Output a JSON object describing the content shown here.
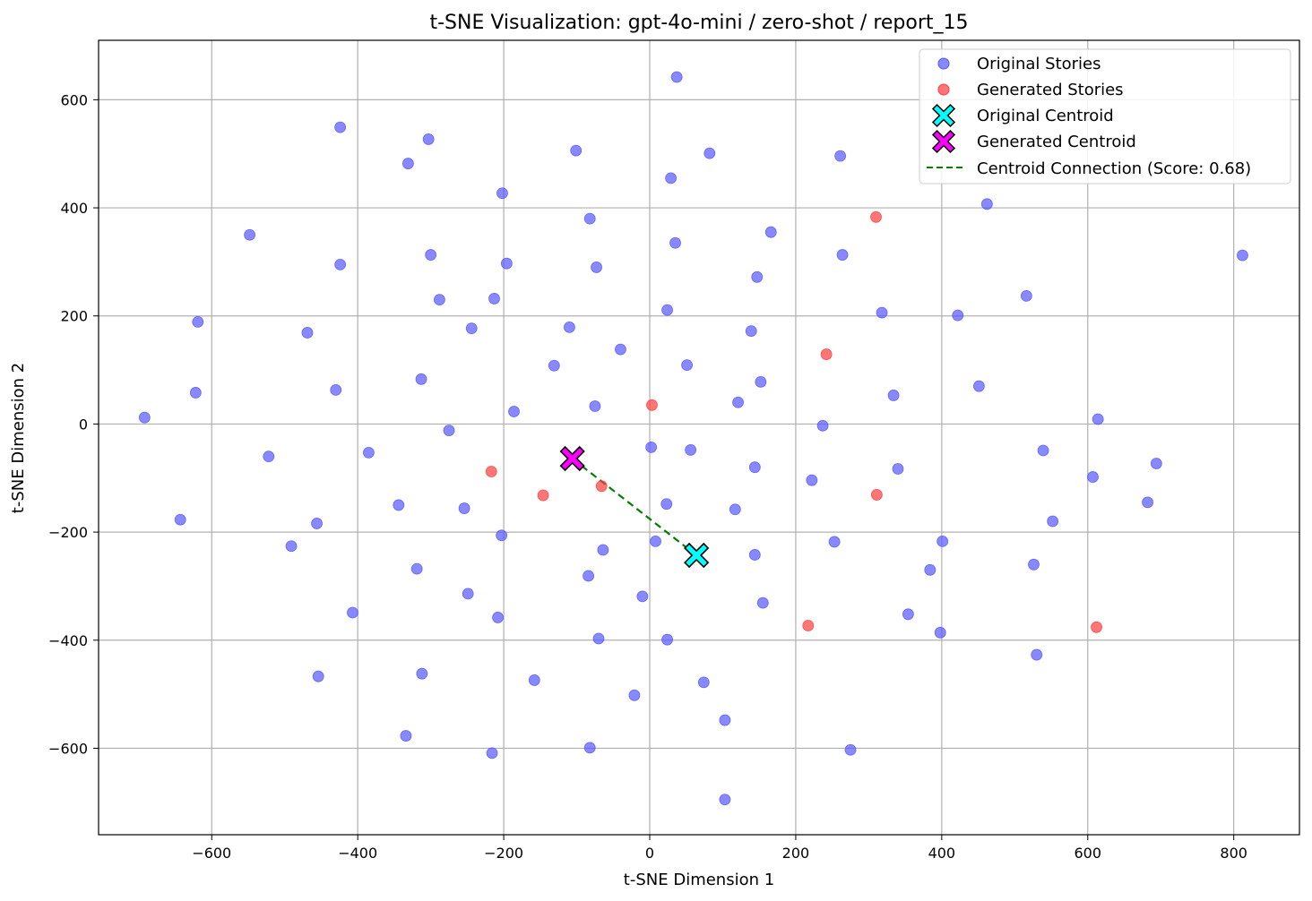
{
  "chart_data": {
    "type": "scatter",
    "title": "t-SNE Visualization: gpt-4o-mini / zero-shot / report_15",
    "xlabel": "t-SNE Dimension 1",
    "ylabel": "t-SNE Dimension 2",
    "xlim": [
      -755,
      890
    ],
    "ylim": [
      -760,
      710
    ],
    "xticks": [
      -600,
      -400,
      -200,
      0,
      200,
      400,
      600,
      800
    ],
    "yticks": [
      -600,
      -400,
      -200,
      0,
      200,
      400,
      600
    ],
    "grid": true,
    "legend_position": "top-right",
    "colors": {
      "original": "#5555ff",
      "generated": "#ff3c3c",
      "original_centroid": "#00ffff",
      "generated_centroid": "#ff00ff",
      "connection": "#008000",
      "grid": "#b0b0b0"
    },
    "series": [
      {
        "name": "Original Stories",
        "points": [
          [
            37,
            642
          ],
          [
            -424,
            549
          ],
          [
            -303,
            527
          ],
          [
            -101,
            506
          ],
          [
            82,
            501
          ],
          [
            -331,
            482
          ],
          [
            29,
            455
          ],
          [
            261,
            496
          ],
          [
            -202,
            427
          ],
          [
            462,
            407
          ],
          [
            -82,
            380
          ],
          [
            -548,
            350
          ],
          [
            35,
            335
          ],
          [
            166,
            355
          ],
          [
            -424,
            295
          ],
          [
            -300,
            313
          ],
          [
            -196,
            297
          ],
          [
            -73,
            290
          ],
          [
            264,
            313
          ],
          [
            147,
            272
          ],
          [
            812,
            312
          ],
          [
            516,
            237
          ],
          [
            -213,
            232
          ],
          [
            -288,
            230
          ],
          [
            24,
            211
          ],
          [
            318,
            206
          ],
          [
            422,
            201
          ],
          [
            -619,
            189
          ],
          [
            -469,
            169
          ],
          [
            -244,
            177
          ],
          [
            -110,
            179
          ],
          [
            139,
            172
          ],
          [
            -40,
            138
          ],
          [
            51,
            109
          ],
          [
            -131,
            108
          ],
          [
            -430,
            63
          ],
          [
            -313,
            83
          ],
          [
            451,
            70
          ],
          [
            -622,
            58
          ],
          [
            152,
            78
          ],
          [
            334,
            53
          ],
          [
            121,
            40
          ],
          [
            -75,
            33
          ],
          [
            -186,
            23
          ],
          [
            -692,
            12
          ],
          [
            614,
            9
          ],
          [
            237,
            -3
          ],
          [
            -275,
            -12
          ],
          [
            2,
            -43
          ],
          [
            56,
            -48
          ],
          [
            539,
            -49
          ],
          [
            -385,
            -53
          ],
          [
            -522,
            -60
          ],
          [
            144,
            -80
          ],
          [
            340,
            -83
          ],
          [
            694,
            -73
          ],
          [
            222,
            -104
          ],
          [
            607,
            -98
          ],
          [
            -344,
            -150
          ],
          [
            23,
            -148
          ],
          [
            -254,
            -156
          ],
          [
            117,
            -158
          ],
          [
            -643,
            -177
          ],
          [
            682,
            -145
          ],
          [
            -456,
            -184
          ],
          [
            552,
            -180
          ],
          [
            -203,
            -206
          ],
          [
            -491,
            -226
          ],
          [
            8,
            -217
          ],
          [
            253,
            -218
          ],
          [
            401,
            -217
          ],
          [
            -64,
            -233
          ],
          [
            144,
            -242
          ],
          [
            -319,
            -268
          ],
          [
            -84,
            -281
          ],
          [
            384,
            -270
          ],
          [
            526,
            -260
          ],
          [
            -249,
            -314
          ],
          [
            -10,
            -319
          ],
          [
            155,
            -331
          ],
          [
            -407,
            -349
          ],
          [
            -208,
            -358
          ],
          [
            354,
            -352
          ],
          [
            -70,
            -397
          ],
          [
            24,
            -399
          ],
          [
            398,
            -386
          ],
          [
            -454,
            -467
          ],
          [
            -312,
            -462
          ],
          [
            -158,
            -474
          ],
          [
            74,
            -478
          ],
          [
            530,
            -427
          ],
          [
            -21,
            -502
          ],
          [
            103,
            -548
          ],
          [
            -334,
            -577
          ],
          [
            -82,
            -599
          ],
          [
            -216,
            -609
          ],
          [
            275,
            -603
          ],
          [
            103,
            -695
          ]
        ]
      },
      {
        "name": "Generated Stories",
        "points": [
          [
            310,
            383
          ],
          [
            242,
            129
          ],
          [
            3,
            35
          ],
          [
            -217,
            -88
          ],
          [
            -146,
            -132
          ],
          [
            -66,
            -115
          ],
          [
            311,
            -131
          ],
          [
            217,
            -373
          ],
          [
            612,
            -376
          ]
        ]
      }
    ],
    "centroids": [
      {
        "name": "Original Centroid",
        "point": [
          64,
          -243
        ]
      },
      {
        "name": "Generated Centroid",
        "point": [
          -106,
          -64
        ]
      }
    ],
    "connection": {
      "name": "Centroid Connection (Score: 0.68)"
    }
  }
}
